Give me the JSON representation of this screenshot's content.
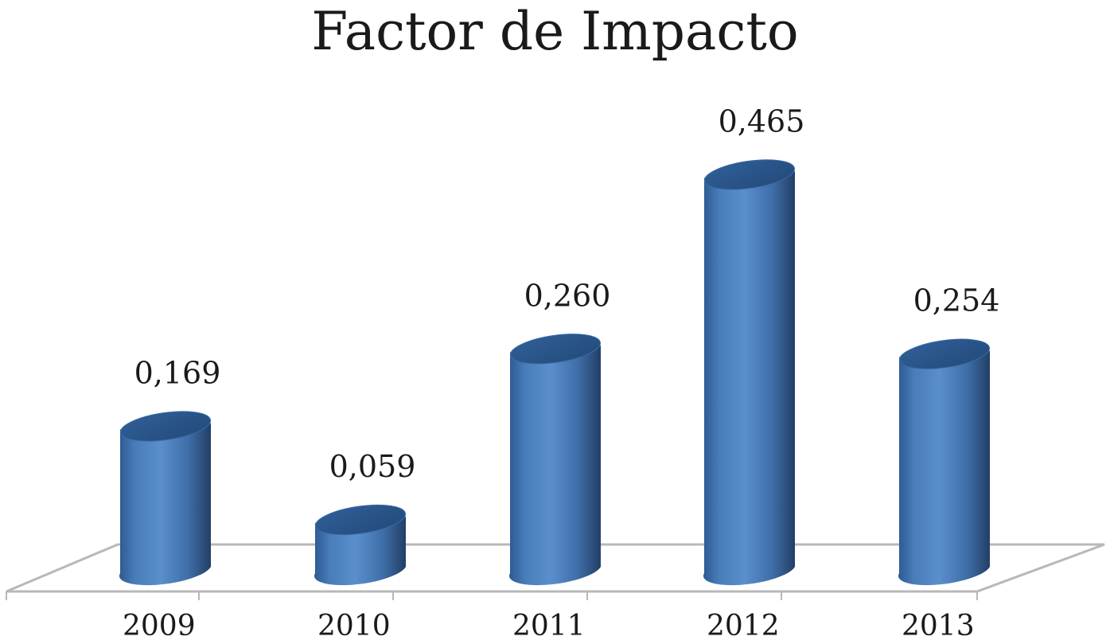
{
  "chart_data": {
    "type": "bar",
    "style": "3d-cylinder",
    "title": "Factor de Impacto",
    "categories": [
      "2009",
      "2010",
      "2011",
      "2012",
      "2013"
    ],
    "values": [
      0.169,
      0.059,
      0.26,
      0.465,
      0.254
    ],
    "value_labels": [
      "0,169",
      "0,059",
      "0,260",
      "0,465",
      "0,254"
    ],
    "xlabel": "",
    "ylabel": "",
    "ylim": [
      0,
      0.5
    ],
    "grid": false,
    "legend": "none",
    "bar_color": "#4a7ebb",
    "bar_dark_color": "#2a4f7f",
    "floor_color": "#b8b8b8"
  }
}
